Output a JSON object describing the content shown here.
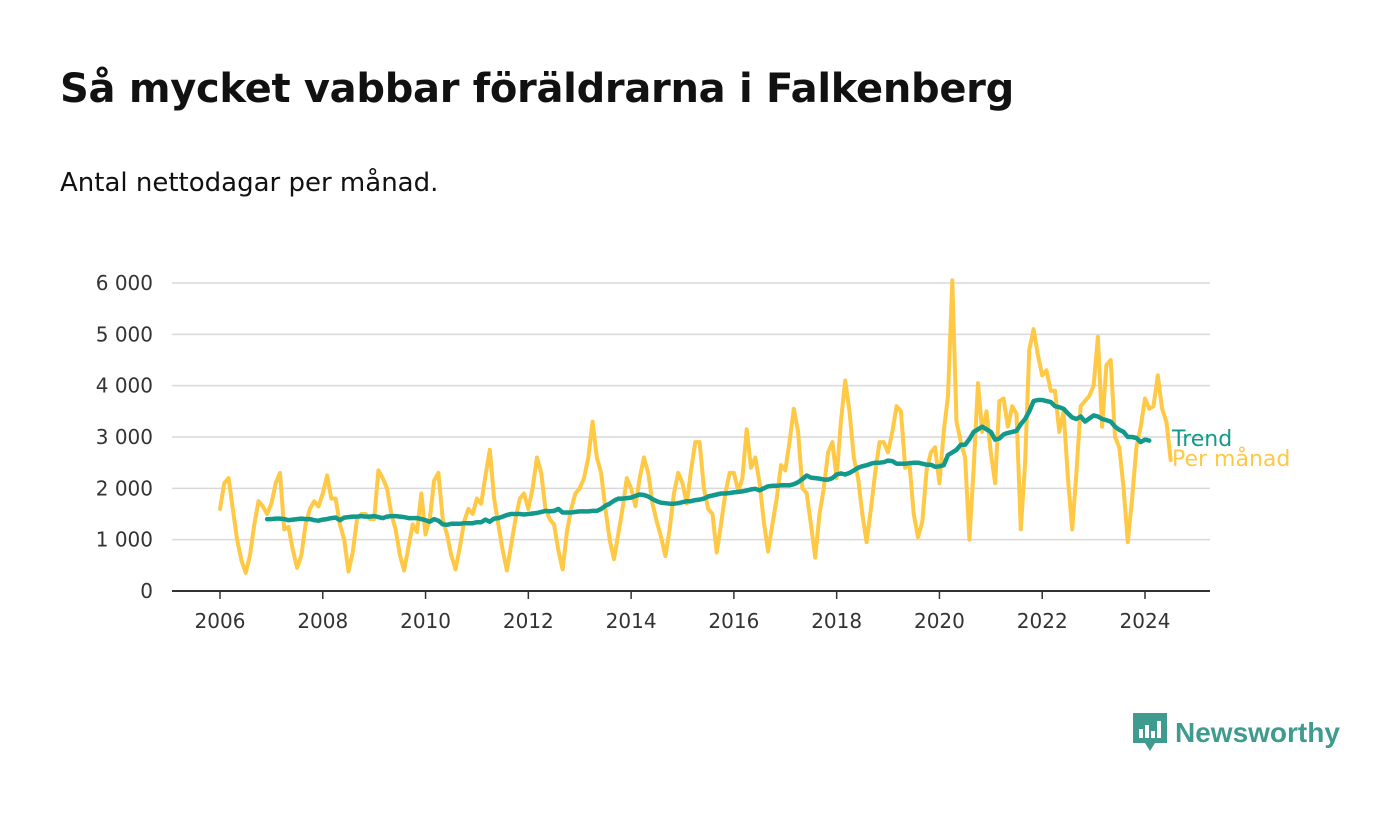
{
  "title": "Så mycket vabbar föräldrarna i Falkenberg",
  "subtitle": "Antal nettodagar per månad.",
  "brand": "Newsworthy",
  "colors": {
    "monthly": "#ffc845",
    "trend": "#13998c",
    "brand": "#3f9a8f",
    "grid": "#d9d9d9",
    "axis": "#333333"
  },
  "chart_data": {
    "type": "line",
    "x_unit": "year (decimal, monthly data)",
    "y_ticks": [
      0,
      1000,
      2000,
      3000,
      4000,
      5000,
      6000
    ],
    "y_tick_labels": [
      "0",
      "1 000",
      "2 000",
      "3 000",
      "4 000",
      "5 000",
      "6 000"
    ],
    "x_ticks": [
      2006,
      2008,
      2010,
      2012,
      2014,
      2016,
      2018,
      2020,
      2022,
      2024
    ],
    "x_tick_labels": [
      "2006",
      "2008",
      "2010",
      "2012",
      "2014",
      "2016",
      "2018",
      "2020",
      "2022",
      "2024"
    ],
    "ylim": [
      0,
      6000
    ],
    "xlim": [
      2005.5,
      2025.3
    ],
    "grid": "horizontal",
    "series": [
      {
        "name": "Per månad",
        "color": "#ffc845",
        "start": 2006.0,
        "step": 0.08333,
        "values": [
          1600,
          2100,
          2200,
          1600,
          1000,
          600,
          350,
          700,
          1300,
          1750,
          1650,
          1500,
          1700,
          2100,
          2300,
          1200,
          1250,
          800,
          450,
          700,
          1300,
          1600,
          1750,
          1650,
          1900,
          2250,
          1800,
          1800,
          1300,
          1000,
          380,
          750,
          1400,
          1500,
          1500,
          1400,
          1400,
          2350,
          2200,
          2000,
          1500,
          1200,
          700,
          400,
          850,
          1300,
          1150,
          1900,
          1100,
          1400,
          2150,
          2300,
          1400,
          1100,
          700,
          420,
          850,
          1350,
          1600,
          1500,
          1800,
          1700,
          2250,
          2750,
          1800,
          1300,
          800,
          400,
          900,
          1400,
          1800,
          1900,
          1600,
          2000,
          2600,
          2300,
          1600,
          1400,
          1300,
          800,
          420,
          1150,
          1600,
          1900,
          2000,
          2200,
          2600,
          3300,
          2600,
          2300,
          1600,
          1000,
          620,
          1100,
          1600,
          2200,
          2000,
          1650,
          2200,
          2600,
          2300,
          1700,
          1350,
          1050,
          680,
          1200,
          1900,
          2300,
          2100,
          1700,
          2350,
          2900,
          2900,
          2000,
          1600,
          1500,
          750,
          1300,
          1900,
          2300,
          2300,
          1950,
          2200,
          3150,
          2400,
          2600,
          2100,
          1350,
          770,
          1300,
          1800,
          2450,
          2350,
          2900,
          3550,
          3100,
          2000,
          1900,
          1300,
          650,
          1500,
          2000,
          2700,
          2900,
          2200,
          3300,
          4100,
          3500,
          2600,
          2200,
          1500,
          950,
          1600,
          2300,
          2900,
          2900,
          2700,
          3100,
          3600,
          3500,
          2400,
          2500,
          1500,
          1050,
          1350,
          2350,
          2700,
          2800,
          2100,
          3100,
          3800,
          6050,
          3300,
          2900,
          2600,
          1000,
          2400,
          4050,
          3100,
          3500,
          2700,
          2100,
          3700,
          3750,
          3200,
          3600,
          3450,
          1200,
          2500,
          4700,
          5100,
          4600,
          4200,
          4300,
          3900,
          3900,
          3100,
          3500,
          2200,
          1200,
          2300,
          3600,
          3700,
          3800,
          4000,
          4950,
          3200,
          4400,
          4500,
          3000,
          2800,
          2000,
          950,
          1800,
          2800,
          3200,
          3750,
          3550,
          3600,
          4200,
          3550,
          3300,
          2550
        ]
      },
      {
        "name": "Trend",
        "color": "#13998c",
        "start": 2006.9167,
        "step": 0.08333,
        "values": [
          1400,
          1400,
          1410,
          1410,
          1400,
          1380,
          1390,
          1400,
          1410,
          1400,
          1400,
          1380,
          1370,
          1390,
          1400,
          1420,
          1430,
          1380,
          1430,
          1440,
          1450,
          1450,
          1460,
          1450,
          1450,
          1460,
          1440,
          1420,
          1450,
          1460,
          1460,
          1450,
          1440,
          1420,
          1420,
          1420,
          1400,
          1380,
          1350,
          1400,
          1370,
          1300,
          1290,
          1310,
          1310,
          1310,
          1320,
          1320,
          1320,
          1340,
          1340,
          1390,
          1350,
          1410,
          1420,
          1450,
          1480,
          1500,
          1500,
          1500,
          1490,
          1500,
          1510,
          1520,
          1540,
          1560,
          1550,
          1560,
          1600,
          1530,
          1530,
          1530,
          1540,
          1550,
          1550,
          1550,
          1560,
          1560,
          1600,
          1660,
          1700,
          1760,
          1800,
          1800,
          1810,
          1820,
          1850,
          1880,
          1870,
          1840,
          1790,
          1750,
          1720,
          1710,
          1700,
          1700,
          1710,
          1730,
          1750,
          1750,
          1770,
          1780,
          1800,
          1840,
          1860,
          1880,
          1900,
          1900,
          1910,
          1920,
          1930,
          1940,
          1960,
          1980,
          1990,
          1960,
          2000,
          2040,
          2050,
          2050,
          2060,
          2060,
          2060,
          2080,
          2120,
          2180,
          2250,
          2210,
          2200,
          2190,
          2170,
          2170,
          2200,
          2270,
          2290,
          2270,
          2300,
          2350,
          2400,
          2430,
          2450,
          2480,
          2500,
          2500,
          2510,
          2540,
          2530,
          2480,
          2480,
          2480,
          2490,
          2500,
          2500,
          2480,
          2460,
          2460,
          2420,
          2430,
          2450,
          2650,
          2700,
          2750,
          2850,
          2850,
          2960,
          3100,
          3150,
          3200,
          3150,
          3100,
          2950,
          2970,
          3050,
          3080,
          3100,
          3120,
          3250,
          3350,
          3500,
          3700,
          3720,
          3720,
          3700,
          3680,
          3600,
          3580,
          3550,
          3460,
          3380,
          3350,
          3400,
          3300,
          3360,
          3420,
          3400,
          3350,
          3330,
          3300,
          3200,
          3140,
          3100,
          3000,
          3000,
          2980,
          2900,
          2950,
          2930
        ]
      }
    ]
  }
}
